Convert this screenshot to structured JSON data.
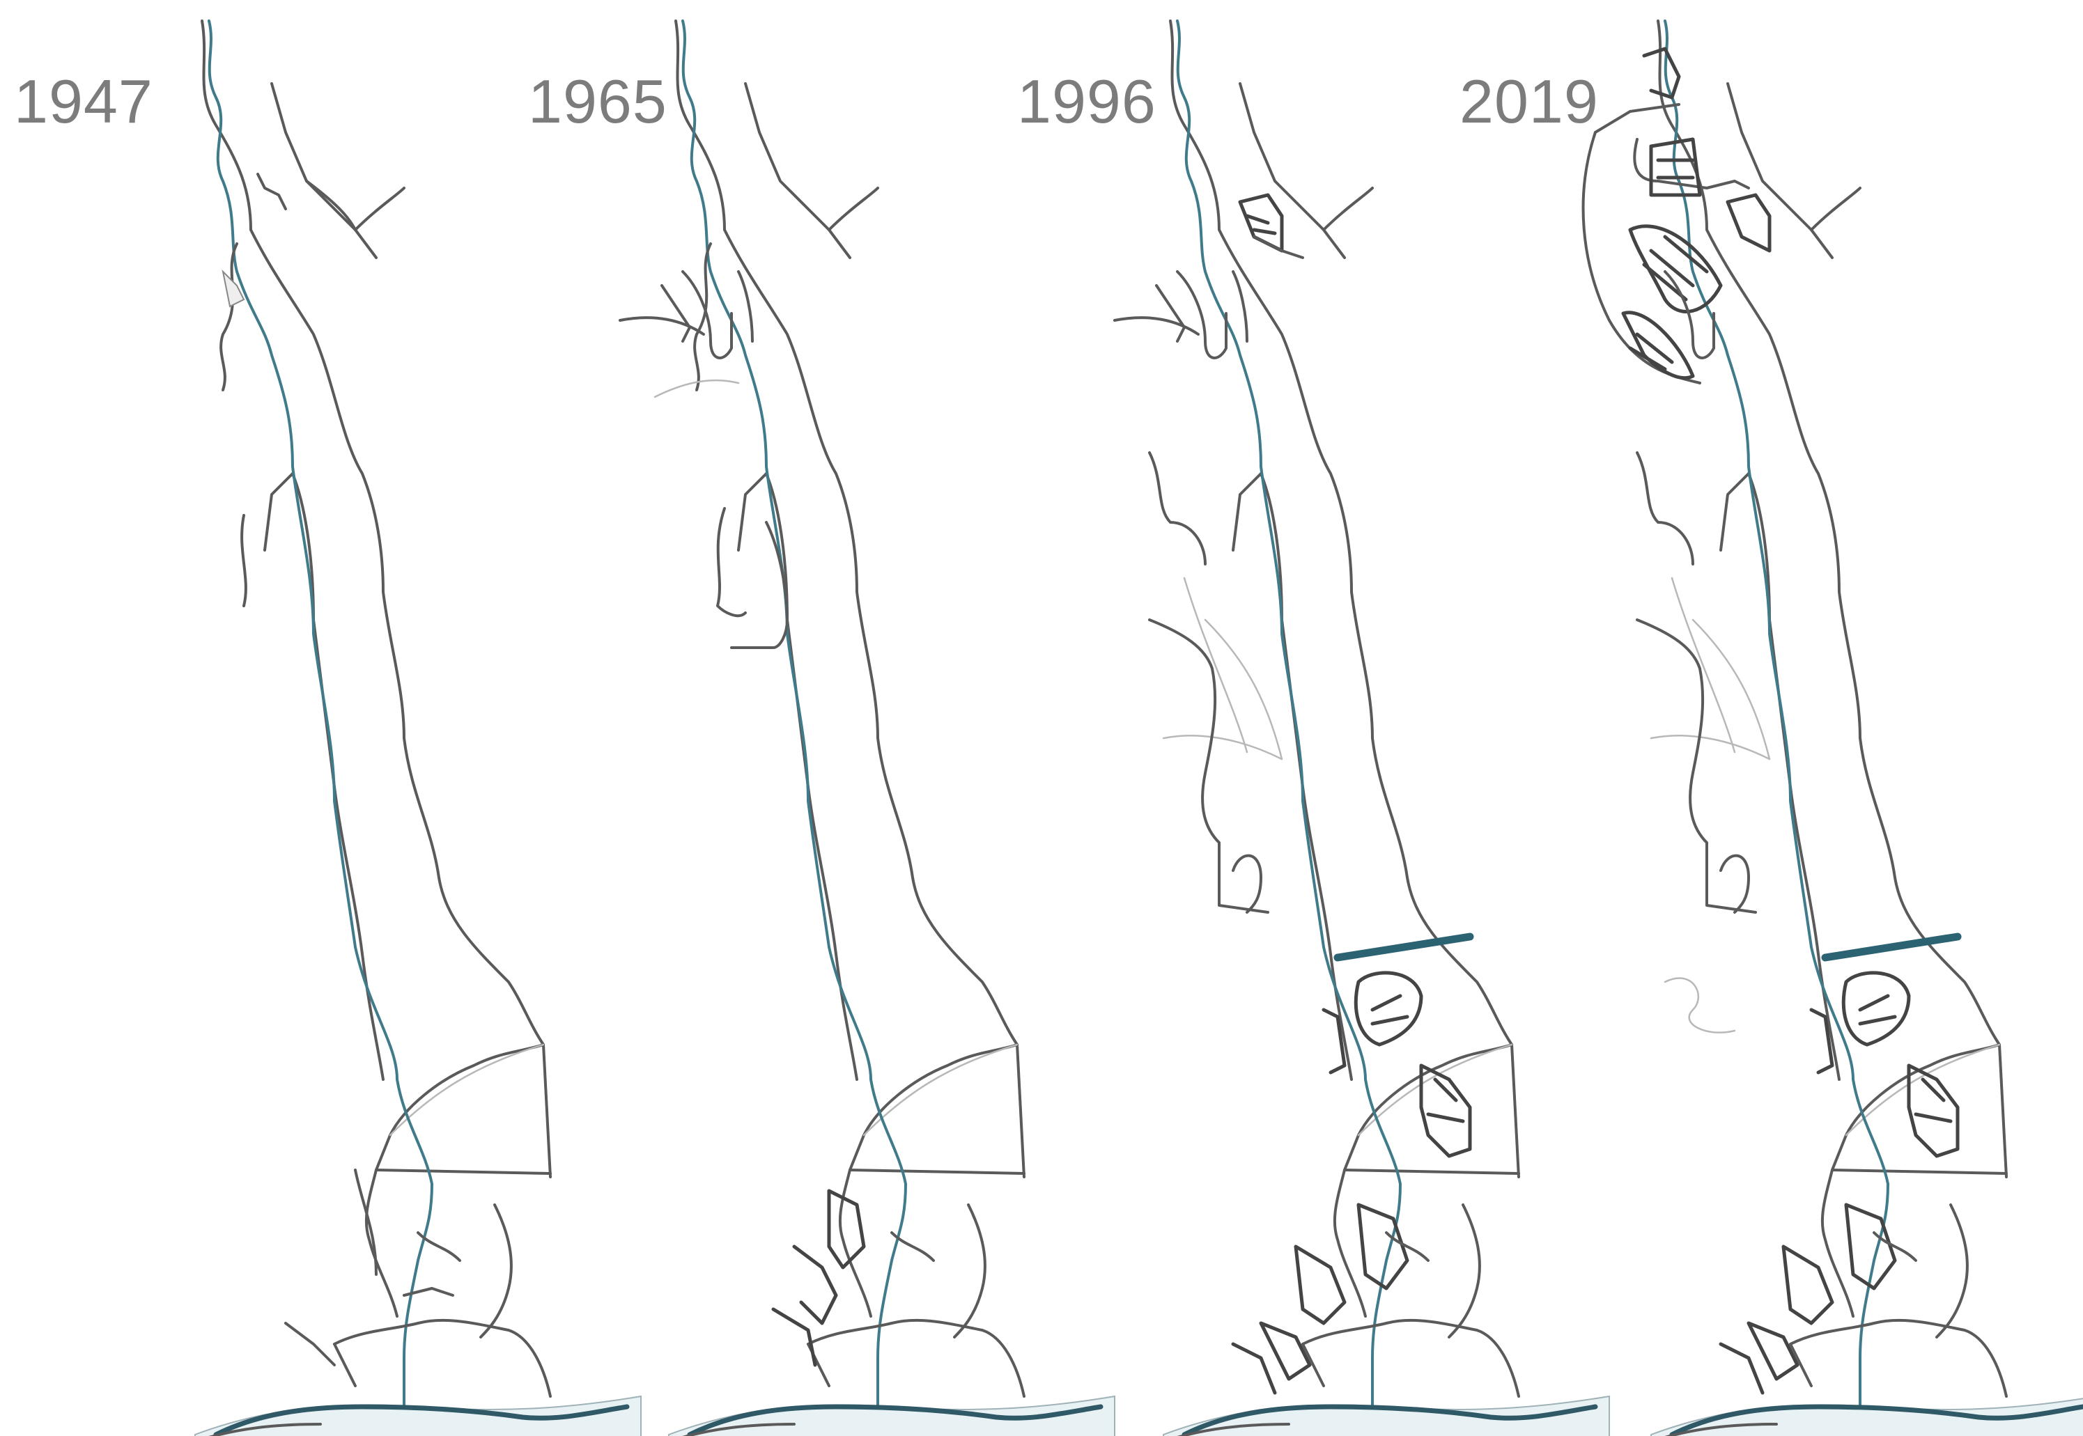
{
  "panels": [
    {
      "year": "1947"
    },
    {
      "year": "1965"
    },
    {
      "year": "1996"
    },
    {
      "year": "2019"
    }
  ],
  "colors": {
    "river": "#3f7b8a",
    "road": "#4a4a4a",
    "sea": "#e8f1f3",
    "label": "#7c7c7c"
  }
}
